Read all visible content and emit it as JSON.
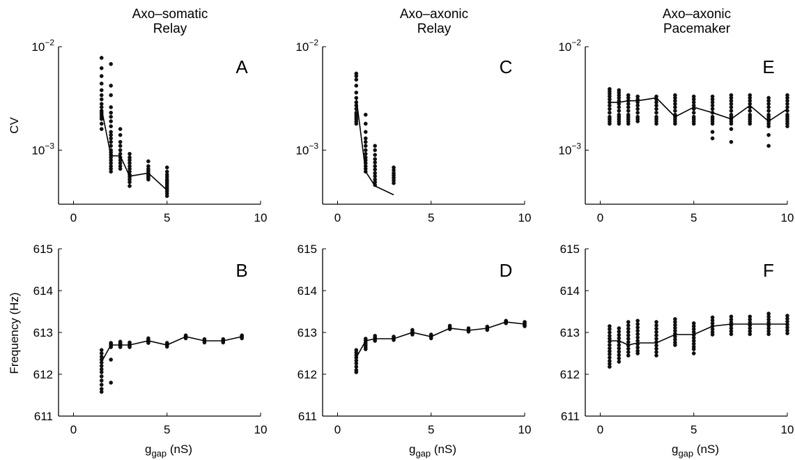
{
  "chart_data": {
    "type": "scatter",
    "columns": [
      {
        "title": [
          "Axo–somatic",
          "Relay"
        ]
      },
      {
        "title": [
          "Axo–axonic",
          "Relay"
        ]
      },
      {
        "title": [
          "Axo–axonic",
          "Pacemaker"
        ]
      }
    ],
    "ylabel_top": "CV",
    "ylabel_bottom": "Frequency (Hz)",
    "xlabel": {
      "base": "g",
      "sub": "gap",
      "unit": " (nS)"
    },
    "x_range": [
      -0.8,
      10
    ],
    "x_ticks": [
      0,
      5,
      10
    ],
    "cv_log_range": [
      0.0003,
      0.01
    ],
    "cv_ticks": [
      {
        "value": 0.01,
        "base": "10",
        "exp": "−2"
      },
      {
        "value": 0.001,
        "base": "10",
        "exp": "−3"
      }
    ],
    "freq_range": [
      611,
      615
    ],
    "freq_ticks": [
      611,
      612,
      613,
      614,
      615
    ],
    "panels": [
      {
        "letter": "A",
        "kind": "cv",
        "col": 0,
        "line": [
          [
            1.5,
            0.0025
          ],
          [
            2,
            0.00088
          ],
          [
            2.5,
            0.00088
          ],
          [
            3,
            0.00056
          ],
          [
            4,
            0.0006
          ],
          [
            5,
            0.00041
          ]
        ],
        "points": [
          [
            1.5,
            [
              0.0078,
              0.0062,
              0.0052,
              0.0044,
              0.0038,
              0.0034,
              0.0031,
              0.0028,
              0.0026,
              0.0024,
              0.0023,
              0.0022,
              0.0021,
              0.002,
              0.0018,
              0.0016
            ]
          ],
          [
            2,
            [
              0.0068,
              0.0042,
              0.0034,
              0.0026,
              0.0023,
              0.0021,
              0.0019,
              0.0017,
              0.0015,
              0.0014,
              0.0013,
              0.0012,
              0.0011,
              0.001,
              0.00095,
              0.0009,
              0.00085,
              0.0008,
              0.00075,
              0.0007,
              0.00066,
              0.00062
            ]
          ],
          [
            2.5,
            [
              0.0016,
              0.0014,
              0.0012,
              0.0011,
              0.001,
              0.00092,
              0.00085,
              0.0008,
              0.00075,
              0.0007,
              0.00066
            ]
          ],
          [
            3,
            [
              0.00092,
              0.00085,
              0.0008,
              0.00075,
              0.0007,
              0.00066,
              0.00062,
              0.00058,
              0.00055,
              0.00052,
              0.00049,
              0.00045
            ]
          ],
          [
            4,
            [
              0.00078,
              0.0007,
              0.00066,
              0.00063,
              0.0006,
              0.00058,
              0.00056,
              0.00054,
              0.00052
            ]
          ],
          [
            5,
            [
              0.00068,
              0.00062,
              0.00058,
              0.00055,
              0.00052,
              0.0005,
              0.00048,
              0.00046,
              0.00044,
              0.00042,
              0.0004,
              0.00038,
              0.00036
            ]
          ]
        ]
      },
      {
        "letter": "C",
        "kind": "cv",
        "col": 1,
        "line": [
          [
            1,
            0.0032
          ],
          [
            1.5,
            0.00062
          ],
          [
            2,
            0.00045
          ],
          [
            3,
            0.00037
          ]
        ],
        "points": [
          [
            1,
            [
              0.0055,
              0.0052,
              0.0048,
              0.0042,
              0.0036,
              0.0032,
              0.0029,
              0.0027,
              0.0025,
              0.0023,
              0.0022,
              0.0021,
              0.002,
              0.0019,
              0.0018
            ]
          ],
          [
            1.5,
            [
              0.0022,
              0.0018,
              0.0015,
              0.0013,
              0.0012,
              0.0011,
              0.001,
              0.00092,
              0.00085,
              0.0008,
              0.00075,
              0.0007,
              0.00066,
              0.00062
            ]
          ],
          [
            2,
            [
              0.0011,
              0.001,
              0.0009,
              0.00082,
              0.00076,
              0.0007,
              0.00065,
              0.0006,
              0.00056,
              0.00052,
              0.00049,
              0.00046
            ]
          ],
          [
            3,
            [
              0.00068,
              0.00064,
              0.0006,
              0.00057,
              0.00054,
              0.00051,
              0.00048
            ]
          ]
        ]
      },
      {
        "letter": "E",
        "kind": "cv",
        "col": 2,
        "line": [
          [
            0.5,
            0.0029
          ],
          [
            1,
            0.0029
          ],
          [
            1.5,
            0.003
          ],
          [
            2,
            0.003
          ],
          [
            3,
            0.0032
          ],
          [
            4,
            0.0021
          ],
          [
            5,
            0.0026
          ],
          [
            6,
            0.0023
          ],
          [
            7,
            0.002
          ],
          [
            8,
            0.0027
          ],
          [
            9,
            0.0019
          ],
          [
            10,
            0.0025
          ]
        ],
        "points": [
          [
            0.5,
            [
              0.0039,
              0.0037,
              0.0035,
              0.0033,
              0.0031,
              0.0029,
              0.0027,
              0.0025,
              0.0023,
              0.0021,
              0.002,
              0.0019,
              0.0018
            ]
          ],
          [
            1,
            [
              0.0038,
              0.0036,
              0.0034,
              0.0032,
              0.003,
              0.0028,
              0.0026,
              0.0024,
              0.0022,
              0.0021,
              0.002,
              0.0019,
              0.0018
            ]
          ],
          [
            1.5,
            [
              0.0034,
              0.0032,
              0.003,
              0.0028,
              0.0026,
              0.0024,
              0.0022,
              0.0021,
              0.002,
              0.0019,
              0.0018
            ]
          ],
          [
            2,
            [
              0.0033,
              0.0031,
              0.0029,
              0.0027,
              0.0025,
              0.0023,
              0.0021,
              0.002,
              0.0019
            ]
          ],
          [
            3,
            [
              0.0033,
              0.0031,
              0.0029,
              0.0027,
              0.0025,
              0.0023,
              0.0021,
              0.002,
              0.0019,
              0.0018
            ]
          ],
          [
            4,
            [
              0.0034,
              0.0032,
              0.003,
              0.0028,
              0.0026,
              0.0024,
              0.0022,
              0.0021,
              0.002,
              0.0019,
              0.0018
            ]
          ],
          [
            5,
            [
              0.0033,
              0.0031,
              0.0029,
              0.0027,
              0.0025,
              0.0023,
              0.0021,
              0.002,
              0.0019,
              0.0018
            ]
          ],
          [
            6,
            [
              0.0033,
              0.0031,
              0.0029,
              0.0027,
              0.0025,
              0.0023,
              0.0021,
              0.002,
              0.0019,
              0.0018,
              0.0015,
              0.0013
            ]
          ],
          [
            7,
            [
              0.0034,
              0.0032,
              0.003,
              0.0028,
              0.0026,
              0.0024,
              0.0022,
              0.0021,
              0.002,
              0.0019,
              0.0018,
              0.0016,
              0.0012
            ]
          ],
          [
            8,
            [
              0.0034,
              0.0032,
              0.003,
              0.0028,
              0.0026,
              0.0024,
              0.0022,
              0.0021,
              0.002,
              0.0019,
              0.0018
            ]
          ],
          [
            9,
            [
              0.0032,
              0.003,
              0.0028,
              0.0026,
              0.0024,
              0.0022,
              0.0021,
              0.002,
              0.0019,
              0.0018,
              0.0017,
              0.0014,
              0.0011
            ]
          ],
          [
            10,
            [
              0.0034,
              0.0032,
              0.003,
              0.0028,
              0.0026,
              0.0024,
              0.0022,
              0.0021,
              0.002,
              0.0019,
              0.0018,
              0.0017
            ]
          ]
        ]
      },
      {
        "letter": "B",
        "kind": "freq",
        "col": 0,
        "line": [
          [
            1.5,
            612.3
          ],
          [
            2,
            612.7
          ],
          [
            2.5,
            612.7
          ],
          [
            3,
            612.7
          ],
          [
            4,
            612.8
          ],
          [
            5,
            612.7
          ],
          [
            6,
            612.9
          ],
          [
            7,
            612.8
          ],
          [
            8,
            612.8
          ],
          [
            9,
            612.9
          ]
        ],
        "points": [
          [
            1.5,
            [
              612.58,
              612.5,
              612.42,
              612.35,
              612.28,
              612.2,
              612.12,
              612.05,
              611.95,
              611.85,
              611.75,
              611.65,
              611.58
            ]
          ],
          [
            2,
            [
              612.75,
              612.72,
              612.68,
              612.65,
              612.35,
              611.8
            ]
          ],
          [
            2.5,
            [
              612.78,
              612.75,
              612.72,
              612.68,
              612.65
            ]
          ],
          [
            3,
            [
              612.76,
              612.72,
              612.68,
              612.65
            ]
          ],
          [
            4,
            [
              612.86,
              612.82,
              612.78,
              612.75
            ]
          ],
          [
            5,
            [
              612.75,
              612.7,
              612.66
            ]
          ],
          [
            6,
            [
              612.93,
              612.9,
              612.86
            ]
          ],
          [
            7,
            [
              612.84,
              612.8,
              612.76
            ]
          ],
          [
            8,
            [
              612.84,
              612.8,
              612.76
            ]
          ],
          [
            9,
            [
              612.93,
              612.9,
              612.86
            ]
          ]
        ]
      },
      {
        "letter": "D",
        "kind": "freq",
        "col": 1,
        "line": [
          [
            1,
            612.4
          ],
          [
            1.5,
            612.8
          ],
          [
            2,
            612.85
          ],
          [
            3,
            612.85
          ],
          [
            4,
            613.0
          ],
          [
            5,
            612.9
          ],
          [
            6,
            613.1
          ],
          [
            7,
            613.05
          ],
          [
            8,
            613.1
          ],
          [
            9,
            613.25
          ],
          [
            10,
            613.2
          ]
        ],
        "points": [
          [
            1,
            [
              612.58,
              612.52,
              612.46,
              612.4,
              612.33,
              612.26,
              612.18,
              612.1,
              612.05
            ]
          ],
          [
            1.5,
            [
              612.85,
              612.8,
              612.75,
              612.7,
              612.65,
              612.6
            ]
          ],
          [
            2,
            [
              612.92,
              612.88,
              612.84,
              612.8
            ]
          ],
          [
            3,
            [
              612.9,
              612.86,
              612.82
            ]
          ],
          [
            4,
            [
              613.06,
              613.02,
              612.98,
              612.95
            ]
          ],
          [
            5,
            [
              612.95,
              612.9,
              612.86
            ]
          ],
          [
            6,
            [
              613.16,
              613.12,
              613.08
            ]
          ],
          [
            7,
            [
              613.1,
              613.06,
              613.02
            ]
          ],
          [
            8,
            [
              613.14,
              613.1,
              613.06
            ]
          ],
          [
            9,
            [
              613.28,
              613.25,
              613.22
            ]
          ],
          [
            10,
            [
              613.25,
              613.22,
              613.18,
              613.15
            ]
          ]
        ]
      },
      {
        "letter": "F",
        "kind": "freq",
        "col": 2,
        "line": [
          [
            0.5,
            612.8
          ],
          [
            1,
            612.8
          ],
          [
            1.5,
            612.7
          ],
          [
            2,
            612.75
          ],
          [
            3,
            612.75
          ],
          [
            4,
            612.95
          ],
          [
            5,
            612.95
          ],
          [
            6,
            613.15
          ],
          [
            7,
            613.2
          ],
          [
            8,
            613.2
          ],
          [
            9,
            613.2
          ],
          [
            10,
            613.2
          ]
        ],
        "points": [
          [
            0.5,
            [
              613.15,
              613.08,
              613.0,
              612.92,
              612.85,
              612.78,
              612.7,
              612.62,
              612.55,
              612.48,
              612.4,
              612.32,
              612.25,
              612.18
            ]
          ],
          [
            1,
            [
              613.1,
              613.02,
              612.94,
              612.86,
              612.78,
              612.7,
              612.62,
              612.54,
              612.46,
              612.38,
              612.3
            ]
          ],
          [
            1.5,
            [
              613.25,
              613.17,
              613.09,
              613.01,
              612.93,
              612.85,
              612.77,
              612.69,
              612.61,
              612.53,
              612.45
            ]
          ],
          [
            2,
            [
              613.28,
              613.2,
              613.12,
              613.04,
              612.96,
              612.88,
              612.8,
              612.72,
              612.64,
              612.56,
              612.5
            ]
          ],
          [
            3,
            [
              613.25,
              613.17,
              613.09,
              613.01,
              612.93,
              612.85,
              612.77,
              612.69,
              612.61,
              612.53,
              612.45
            ]
          ],
          [
            4,
            [
              613.32,
              613.25,
              613.18,
              613.11,
              613.04,
              612.97,
              612.9,
              612.83,
              612.76,
              612.7
            ]
          ],
          [
            5,
            [
              613.22,
              613.15,
              613.08,
              613.01,
              612.94,
              612.87,
              612.8,
              612.73,
              612.66,
              612.6,
              612.5
            ]
          ],
          [
            6,
            [
              613.36,
              613.29,
              613.22,
              613.15,
              613.08,
              613.01,
              612.95
            ]
          ],
          [
            7,
            [
              613.38,
              613.31,
              613.24,
              613.17,
              613.1,
              613.03,
              612.96
            ]
          ],
          [
            8,
            [
              613.38,
              613.31,
              613.24,
              613.17,
              613.1,
              613.03,
              612.96
            ]
          ],
          [
            9,
            [
              613.45,
              613.38,
              613.31,
              613.24,
              613.17,
              613.1,
              613.03,
              612.96
            ]
          ],
          [
            10,
            [
              613.4,
              613.33,
              613.26,
              613.19,
              613.12,
              613.05,
              612.98
            ]
          ]
        ]
      }
    ]
  }
}
